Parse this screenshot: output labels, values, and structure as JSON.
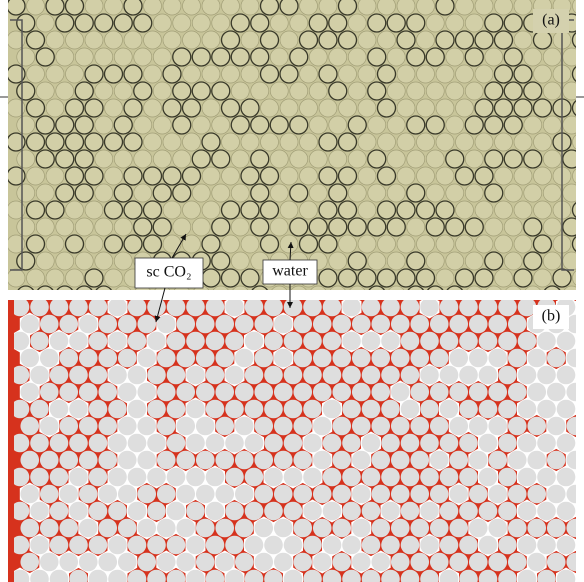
{
  "panels": [
    {
      "label": "(a)"
    },
    {
      "label": "(b)"
    }
  ],
  "annotations": [
    {
      "text": "sc CO₂"
    },
    {
      "text": "water"
    }
  ]
}
